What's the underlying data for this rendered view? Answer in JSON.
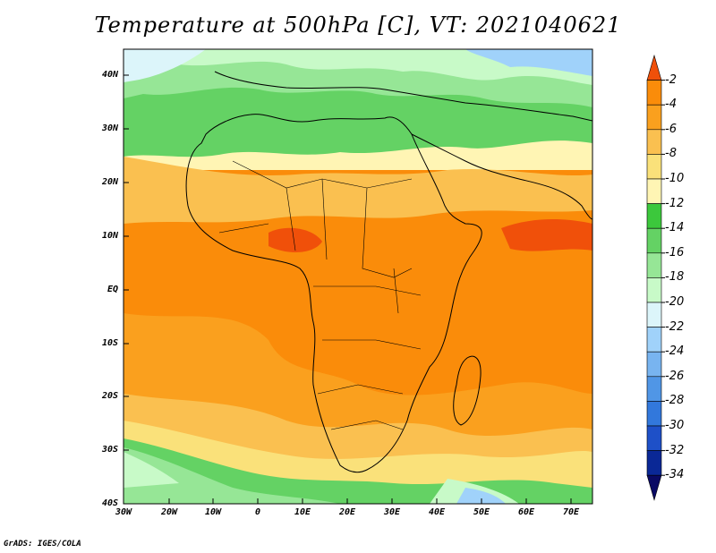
{
  "title": "Temperature at 500hPa [C], VT: 2021040621",
  "credit": "GrADS: IGES/COLA",
  "map": {
    "lat_labels": [
      "40N",
      "30N",
      "20N",
      "10N",
      "EQ",
      "10S",
      "20S",
      "30S",
      "40S"
    ],
    "lon_labels": [
      "30W",
      "20W",
      "10W",
      "0",
      "10E",
      "20E",
      "30E",
      "40E",
      "50E",
      "60E",
      "70E"
    ]
  },
  "colorbar": {
    "labels": [
      "-2",
      "-4",
      "-6",
      "-8",
      "-10",
      "-12",
      "-14",
      "-16",
      "-18",
      "-20",
      "-22",
      "-24",
      "-26",
      "-28",
      "-30",
      "-32",
      "-34"
    ],
    "colors": [
      "#f0500a",
      "#fa8c0a",
      "#faa01e",
      "#fac050",
      "#fae17a",
      "#fff5b4",
      "#3cc83c",
      "#64d264",
      "#96e696",
      "#c8fac8",
      "#dcf5fa",
      "#a0d2fa",
      "#78b4f0",
      "#5096e6",
      "#3278dc",
      "#1e50c8",
      "#0a2896",
      "#0a0a64"
    ]
  }
}
